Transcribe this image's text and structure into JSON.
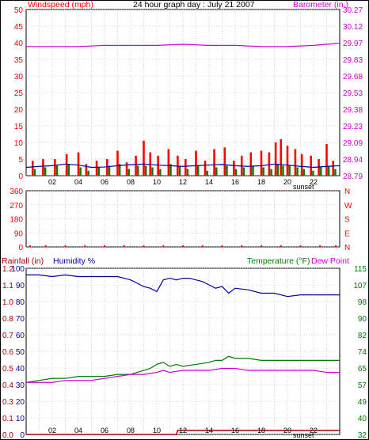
{
  "header": {
    "left_label": "Windspeed (mph)",
    "title": "24 hour graph day : July 21 2007",
    "right_label": "Barometer (in.)"
  },
  "colors": {
    "windspeed": "#ff0000",
    "gust": "#007a00",
    "avg_wind": "#0000a0",
    "barometer": "#cc00cc",
    "humidity": "#0000a0",
    "temperature": "#007a00",
    "dewpoint": "#cc00cc",
    "rainfall": "#aa0000",
    "wind_dir": "#ff0000",
    "grid": "#b0b0b0"
  },
  "x_axis": {
    "hours": [
      "02",
      "04",
      "06",
      "08",
      "10",
      "12",
      "14",
      "16",
      "18",
      "20",
      "22"
    ],
    "sunset_label": "sunset"
  },
  "chart_data": [
    {
      "type": "bar",
      "panel": "wind",
      "title": "24 hour graph day : July 21 2007",
      "ylabel": "Windspeed (mph)",
      "y2label": "Barometer (in.)",
      "x_range_hours": [
        0,
        24
      ],
      "ylim": [
        0,
        50
      ],
      "y_ticks": [
        "0",
        "5",
        "10",
        "15",
        "20",
        "25",
        "30",
        "35",
        "40",
        "45",
        "50"
      ],
      "y2_ticks": [
        "28.79",
        "28.94",
        "29.09",
        "29.23",
        "29.38",
        "29.53",
        "29.68",
        "29.83",
        "29.97",
        "30.12",
        "30.27"
      ],
      "y2lim": [
        28.79,
        30.27
      ],
      "grid": true,
      "series": [
        {
          "name": "Windspeed (mph)",
          "type": "bar",
          "axis": "left",
          "x": [
            0.5,
            1.3,
            2.2,
            3.1,
            4.0,
            4.6,
            5.4,
            6.2,
            7.0,
            7.7,
            8.4,
            9.0,
            9.5,
            10.1,
            10.9,
            11.6,
            12.2,
            13.0,
            13.7,
            14.4,
            15.2,
            15.9,
            16.5,
            17.2,
            18.0,
            18.6,
            19.1,
            19.5,
            20.0,
            20.6,
            21.1,
            21.8,
            22.4,
            23.0,
            23.5
          ],
          "values": [
            4.5,
            5,
            5,
            6.5,
            7,
            3.5,
            4.5,
            5,
            7.5,
            4,
            6,
            10.5,
            7,
            6,
            8,
            6,
            5,
            7.5,
            4.5,
            8,
            8.5,
            4.5,
            6,
            7,
            7.5,
            7,
            10,
            11,
            9,
            8,
            6.5,
            6,
            5,
            9.5,
            4.5
          ]
        },
        {
          "name": "Gust",
          "type": "bar",
          "axis": "left",
          "x": [
            0.5,
            1.3,
            2.2,
            3.1,
            4.0,
            4.6,
            5.4,
            6.2,
            7.0,
            7.7,
            8.4,
            9.0,
            9.5,
            10.1,
            10.9,
            11.6,
            12.2,
            13.0,
            13.7,
            14.4,
            15.2,
            15.9,
            16.5,
            17.2,
            18.0,
            18.6,
            19.1,
            19.5,
            20.0,
            20.6,
            21.1,
            21.8,
            22.4,
            23.0,
            23.5
          ],
          "values": [
            2,
            2.5,
            3,
            3.5,
            2.5,
            1.5,
            2.5,
            3,
            3.5,
            2,
            3,
            3,
            2.5,
            2,
            3.5,
            3,
            2,
            3,
            1.5,
            2.5,
            3,
            2,
            2.5,
            3,
            2.5,
            2,
            3.5,
            3,
            3,
            2.5,
            2,
            1.5,
            2.5,
            3,
            2
          ]
        },
        {
          "name": "Average wind",
          "type": "line",
          "axis": "left",
          "x": [
            0,
            1,
            2,
            3,
            4,
            5,
            6,
            7,
            8,
            9,
            10,
            11,
            12,
            13,
            14,
            15,
            16,
            17,
            18,
            19,
            20,
            21,
            22,
            23,
            24
          ],
          "values": [
            2.5,
            2.8,
            3,
            3.5,
            3.2,
            2.5,
            2.6,
            3,
            3.3,
            3.5,
            3.2,
            3,
            2.8,
            3,
            3.2,
            3.4,
            3,
            2.8,
            3,
            3.5,
            3.2,
            2.8,
            2.5,
            2.8,
            3
          ]
        },
        {
          "name": "Barometer (in.)",
          "type": "line",
          "axis": "right",
          "x": [
            0,
            2,
            4,
            6,
            8,
            10,
            12,
            14,
            16,
            18,
            20,
            22,
            23,
            24
          ],
          "values": [
            29.94,
            29.94,
            29.94,
            29.95,
            29.95,
            29.95,
            29.96,
            29.95,
            29.95,
            29.94,
            29.94,
            29.95,
            29.96,
            29.97
          ]
        }
      ]
    },
    {
      "type": "scatter",
      "panel": "wind_direction",
      "x_range_hours": [
        0,
        24
      ],
      "ylim": [
        0,
        360
      ],
      "y_ticks": [
        "0",
        "90",
        "180",
        "270",
        "360"
      ],
      "y2_ticks": [
        "N",
        "E",
        "S",
        "W",
        "N"
      ],
      "grid": true,
      "series": [
        {
          "name": "Wind direction",
          "x": [
            0.3,
            1.5,
            3,
            4.5,
            6,
            7.5,
            9,
            10.5,
            12,
            13.5,
            15,
            16.5,
            18,
            19.5,
            21,
            22.5,
            23.7
          ],
          "values": [
            0,
            0,
            0,
            0,
            0,
            0,
            0,
            0,
            0,
            0,
            0,
            0,
            0,
            0,
            0,
            0,
            0
          ]
        }
      ]
    },
    {
      "type": "line",
      "panel": "weather",
      "ylabel_rain": "Rainfall (in)",
      "ylabel_humidity": "Humidity %",
      "y2label": "Temperature (°F)",
      "y2label_b": "Dew Point",
      "x_range_hours": [
        0,
        24
      ],
      "y_ticks_rain": [
        "0.0",
        "0.1",
        "0.3",
        "0.4",
        "0.5",
        "0.6",
        "0.7",
        "0.8",
        "1.0",
        "1.1",
        "1.2"
      ],
      "y_ticks_humidity": [
        "0",
        "10",
        "20",
        "30",
        "40",
        "50",
        "60",
        "70",
        "80",
        "90",
        "100"
      ],
      "y2_ticks": [
        "32",
        "40",
        "49",
        "57",
        "65",
        "74",
        "82",
        "90",
        "98",
        "107",
        "115"
      ],
      "ylim_humidity": [
        0,
        100
      ],
      "y2lim": [
        32,
        115
      ],
      "grid": true,
      "series": [
        {
          "name": "Humidity %",
          "axis": "humidity",
          "x": [
            0,
            1,
            2,
            3,
            4,
            5,
            6,
            7,
            7.5,
            8,
            8.5,
            9,
            9.5,
            10,
            10.5,
            11,
            11.5,
            12,
            12.5,
            13,
            13.5,
            14,
            14.5,
            15,
            15.5,
            16,
            17,
            18,
            19,
            20,
            21,
            22,
            23,
            24
          ],
          "values": [
            96,
            96,
            95,
            96,
            95,
            95,
            95,
            95,
            94,
            93,
            91,
            89,
            88,
            86,
            93,
            94,
            93,
            94,
            94,
            93,
            92,
            90,
            88,
            89,
            85,
            88,
            87,
            85,
            85,
            83,
            84,
            84,
            84,
            84
          ]
        },
        {
          "name": "Temperature (°F)",
          "axis": "temp",
          "x": [
            0,
            1,
            2,
            3,
            4,
            5,
            6,
            7,
            8,
            8.5,
            9,
            9.5,
            10,
            10.5,
            11,
            11.5,
            12,
            13,
            14,
            14.5,
            15,
            15.5,
            16,
            17,
            18,
            19,
            20,
            21,
            22,
            23,
            24
          ],
          "values": [
            58,
            59,
            60,
            60,
            61,
            61,
            61,
            62,
            62,
            63,
            64,
            65,
            67,
            68,
            66,
            67,
            66,
            67,
            68,
            69,
            69,
            71,
            70,
            70,
            69,
            69,
            69,
            69,
            69,
            69,
            69
          ]
        },
        {
          "name": "Dew Point",
          "axis": "temp",
          "x": [
            0,
            1,
            2,
            3,
            4,
            5,
            6,
            7,
            8,
            9,
            10,
            10.5,
            11,
            12,
            13,
            14,
            15,
            16,
            17,
            18,
            19,
            20,
            21,
            22,
            23,
            24
          ],
          "values": [
            58,
            58,
            58,
            59,
            59,
            59,
            60,
            61,
            62,
            62,
            63,
            64,
            63,
            64,
            64,
            64,
            65,
            65,
            64,
            64,
            64,
            64,
            64,
            64,
            63,
            63
          ]
        },
        {
          "name": "Rainfall (in)",
          "axis": "rain",
          "x": [
            0,
            11.5,
            11.6,
            24
          ],
          "values": [
            0.0,
            0.0,
            0.03,
            0.03
          ]
        }
      ]
    }
  ]
}
